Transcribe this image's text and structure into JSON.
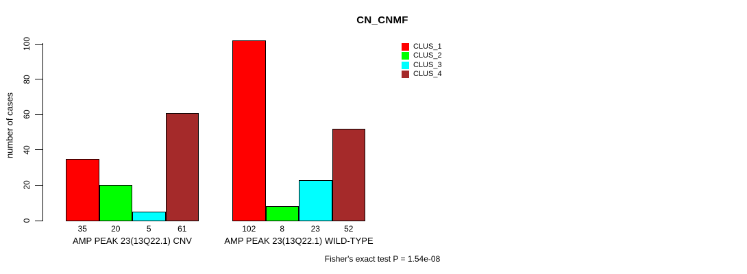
{
  "chart_data": {
    "type": "bar",
    "title": "CN_CNMF",
    "ylabel": "number of cases",
    "xlabel": "",
    "ylim": [
      0,
      100
    ],
    "yticks": [
      0,
      20,
      40,
      60,
      80,
      100
    ],
    "grid": false,
    "legend_position": "top-right-of-plot",
    "categories": [
      "AMP PEAK 23(13Q22.1) CNV",
      "AMP PEAK 23(13Q22.1) WILD-TYPE"
    ],
    "series": [
      {
        "name": "CLUS_1",
        "color": "#FF0000",
        "values": [
          35,
          102
        ]
      },
      {
        "name": "CLUS_2",
        "color": "#00FF00",
        "values": [
          20,
          8
        ]
      },
      {
        "name": "CLUS_3",
        "color": "#00FFFF",
        "values": [
          5,
          23
        ]
      },
      {
        "name": "CLUS_4",
        "color": "#A52A2A",
        "values": [
          61,
          52
        ]
      }
    ],
    "bar_value_labels": [
      [
        35,
        20,
        5,
        61
      ],
      [
        102,
        8,
        23,
        52
      ]
    ],
    "annotation": "Fisher's exact test P = 1.54e-08"
  },
  "colors": {
    "background": "#FFFFFF",
    "axis": "#000000",
    "text": "#000000",
    "bar_border": "#000000"
  }
}
